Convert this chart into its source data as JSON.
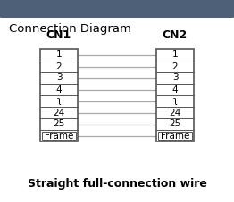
{
  "title": "Connection Diagram",
  "subtitle": "Straight full-connection wire",
  "cn1_label": "CN1",
  "cn2_label": "CN2",
  "pin_rows": [
    "1",
    "2",
    "3",
    "4",
    "ʅ",
    "24",
    "25",
    "Frame"
  ],
  "bg_color": "#ffffff",
  "header_color": "#4d6077",
  "box_facecolor": "#ffffff",
  "border_color": "#555555",
  "line_color": "#aaaaaa",
  "text_color": "#000000",
  "header_text_color": "#ffffff",
  "outer_border_color": "#999999",
  "figw": 2.62,
  "figh": 2.27,
  "dpi": 100
}
